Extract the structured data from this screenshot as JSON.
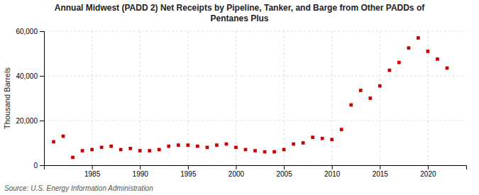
{
  "chart_data": {
    "type": "scatter",
    "title": "Annual Midwest (PADD 2) Net Receipts by Pipeline, Tanker, and Barge from Other PADDs of\nPentanes Plus",
    "y_label": "Thousand Barrels",
    "annotations": [
      "Source: U.S. Energy Information Administration"
    ],
    "x": [
      1981,
      1982,
      1983,
      1984,
      1985,
      1986,
      1987,
      1988,
      1989,
      1990,
      1991,
      1992,
      1993,
      1994,
      1995,
      1996,
      1997,
      1998,
      1999,
      2000,
      2001,
      2002,
      2003,
      2004,
      2005,
      2006,
      2007,
      2008,
      2009,
      2010,
      2011,
      2012,
      2013,
      2014,
      2015,
      2016,
      2017,
      2018,
      2019,
      2020,
      2021,
      2022
    ],
    "values": [
      10500,
      13000,
      3500,
      6500,
      7000,
      8000,
      8500,
      7000,
      7500,
      6500,
      6500,
      7000,
      8500,
      9000,
      9000,
      8500,
      8000,
      9000,
      9500,
      8000,
      7000,
      6500,
      6000,
      6000,
      7000,
      9500,
      10000,
      12500,
      12000,
      11500,
      16000,
      27000,
      33500,
      30000,
      35500,
      42500,
      46000,
      52500,
      57000,
      51000,
      47500,
      43500
    ],
    "color": "#cc0000",
    "marker": "square",
    "xlim": [
      1980,
      2024
    ],
    "ylim": [
      0,
      60000
    ],
    "xticks": [
      1985,
      1990,
      1995,
      2000,
      2005,
      2010,
      2015,
      2020
    ],
    "yticks": [
      0,
      {
        "value": 20000,
        "label": "20,000"
      },
      {
        "value": 40000,
        "label": "40,000"
      },
      {
        "value": 60000,
        "label": "60,000"
      }
    ],
    "grid": true
  }
}
